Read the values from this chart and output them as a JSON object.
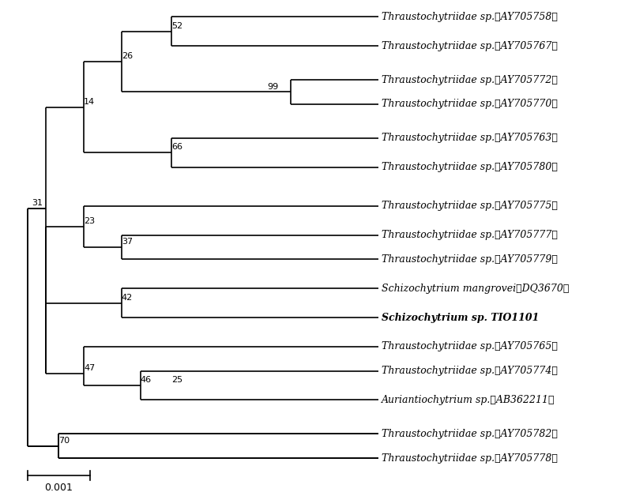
{
  "taxa": [
    "Thraustochytriidae sp.（AY705758）",
    "Thraustochytriidae sp.（AY705767）",
    "Thraustochytriidae sp.（AY705772）",
    "Thraustochytriidae sp.（AY705770）",
    "Thraustochytriidae sp.（AY705763）",
    "Thraustochytriidae sp.（AY705780）",
    "Thraustochytriidae sp.（AY705775）",
    "Thraustochytriidae sp.（AY705777）",
    "Thraustochytriidae sp.（AY705779）",
    "Schizochytrium mangrovei（DQ3670）",
    "Schizochytrium sp. TIO1101",
    "Thraustochytriidae sp.（AY705765）",
    "Thraustochytriidae sp.（AY705774）",
    "Auriantiochytrium sp.（AB362211）",
    "Thraustochytriidae sp.（AY705782）",
    "Thraustochytriidae sp.（AY705778）"
  ],
  "taxa_italic": [
    true,
    true,
    true,
    true,
    true,
    true,
    true,
    true,
    true,
    true,
    true,
    true,
    true,
    true,
    true,
    true
  ],
  "background_color": "#ffffff",
  "line_color": "#000000",
  "text_color": "#000000",
  "font_size": 9,
  "bootstrap_font_size": 8,
  "scalebar_value": "0.001"
}
